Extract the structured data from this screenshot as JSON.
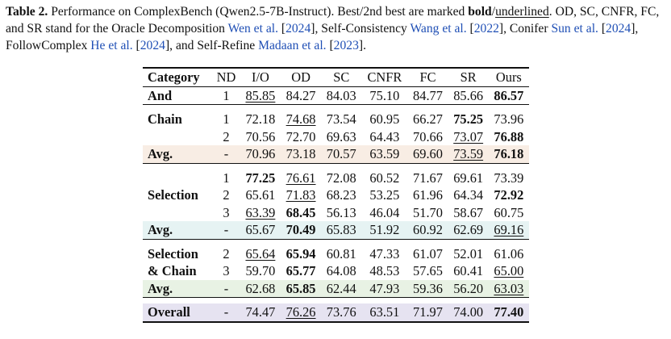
{
  "caption": {
    "label": "Table 2.",
    "t1": " Performance on ComplexBench (Qwen2.5-7B-Instruct). Best/2nd best are marked ",
    "bold_word": "bold",
    "slash": "/",
    "underlined_word": "underlined",
    "t2": ". OD, SC, CNFR, FC, and SR stand for the Oracle Decomposition ",
    "c1": "Wen et al.",
    "c1y": "2024",
    "t3": ", Self-Consistency ",
    "c2": "Wang et al.",
    "c2y": "2022",
    "t4": ", Conifer ",
    "c3": "Sun et al.",
    "c3y": "2024",
    "t5": ", FollowComplex ",
    "c4": "He et al.",
    "c4y": "2024",
    "t6": ", and Self-Refine ",
    "c5": "Madaan et al.",
    "c5y": "2023",
    "t7": "."
  },
  "table": {
    "headers": [
      "Category",
      "ND",
      "I/O",
      "OD",
      "SC",
      "CNFR",
      "FC",
      "SR",
      "Ours"
    ],
    "rows": {
      "and": {
        "cat": "And",
        "nd": "1",
        "v": [
          "85.85",
          "84.27",
          "84.03",
          "75.10",
          "84.77",
          "85.66",
          "86.57"
        ]
      },
      "chain1": {
        "cat": "Chain",
        "nd": "1",
        "v": [
          "72.18",
          "74.68",
          "73.54",
          "60.95",
          "66.27",
          "75.25",
          "73.96"
        ]
      },
      "chain2": {
        "nd": "2",
        "v": [
          "70.56",
          "72.70",
          "69.63",
          "64.43",
          "70.66",
          "73.07",
          "76.88"
        ]
      },
      "chain_avg": {
        "cat": "Avg.",
        "nd": "-",
        "v": [
          "70.96",
          "73.18",
          "70.57",
          "63.59",
          "69.60",
          "73.59",
          "76.18"
        ]
      },
      "sel1": {
        "nd": "1",
        "v": [
          "77.25",
          "76.61",
          "72.08",
          "60.52",
          "71.67",
          "69.61",
          "73.39"
        ]
      },
      "sel2": {
        "cat": "Selection",
        "nd": "2",
        "v": [
          "65.61",
          "71.83",
          "68.23",
          "53.25",
          "61.96",
          "64.34",
          "72.92"
        ]
      },
      "sel3": {
        "nd": "3",
        "v": [
          "63.39",
          "68.45",
          "56.13",
          "46.04",
          "51.70",
          "58.67",
          "60.75"
        ]
      },
      "sel_avg": {
        "cat": "Avg.",
        "nd": "-",
        "v": [
          "65.67",
          "70.49",
          "65.83",
          "51.92",
          "60.92",
          "62.69",
          "69.16"
        ]
      },
      "sc2": {
        "cat": "Selection",
        "nd": "2",
        "v": [
          "65.64",
          "65.94",
          "60.81",
          "47.33",
          "61.07",
          "52.01",
          "61.06"
        ]
      },
      "sc3": {
        "cat": "& Chain",
        "nd": "3",
        "v": [
          "59.70",
          "65.77",
          "64.08",
          "48.53",
          "57.65",
          "60.41",
          "65.00"
        ]
      },
      "sc_avg": {
        "cat": "Avg.",
        "nd": "-",
        "v": [
          "62.68",
          "65.85",
          "62.44",
          "47.93",
          "59.36",
          "56.20",
          "63.03"
        ]
      },
      "overall": {
        "cat": "Overall",
        "nd": "-",
        "v": [
          "74.47",
          "76.26",
          "73.76",
          "63.51",
          "71.97",
          "74.00",
          "77.40"
        ]
      }
    },
    "styles": {
      "and": [
        "u",
        "",
        "",
        "",
        "",
        "",
        "b"
      ],
      "chain1": [
        "",
        "u",
        "",
        "",
        "",
        "b",
        ""
      ],
      "chain2": [
        "",
        "",
        "",
        "",
        "",
        "u",
        "b"
      ],
      "chain_avg": [
        "",
        "",
        "",
        "",
        "",
        "u",
        "b"
      ],
      "sel1": [
        "b",
        "u",
        "",
        "",
        "",
        "",
        ""
      ],
      "sel2": [
        "",
        "u",
        "",
        "",
        "",
        "",
        "b"
      ],
      "sel3": [
        "u",
        "b",
        "",
        "",
        "",
        "",
        ""
      ],
      "sel_avg": [
        "",
        "b",
        "",
        "",
        "",
        "",
        "u"
      ],
      "sc2": [
        "u",
        "b",
        "",
        "",
        "",
        "",
        ""
      ],
      "sc3": [
        "",
        "b",
        "",
        "",
        "",
        "",
        "u"
      ],
      "sc_avg": [
        "",
        "b",
        "",
        "",
        "",
        "",
        "u"
      ],
      "overall": [
        "",
        "u",
        "",
        "",
        "",
        "",
        "b"
      ]
    }
  }
}
